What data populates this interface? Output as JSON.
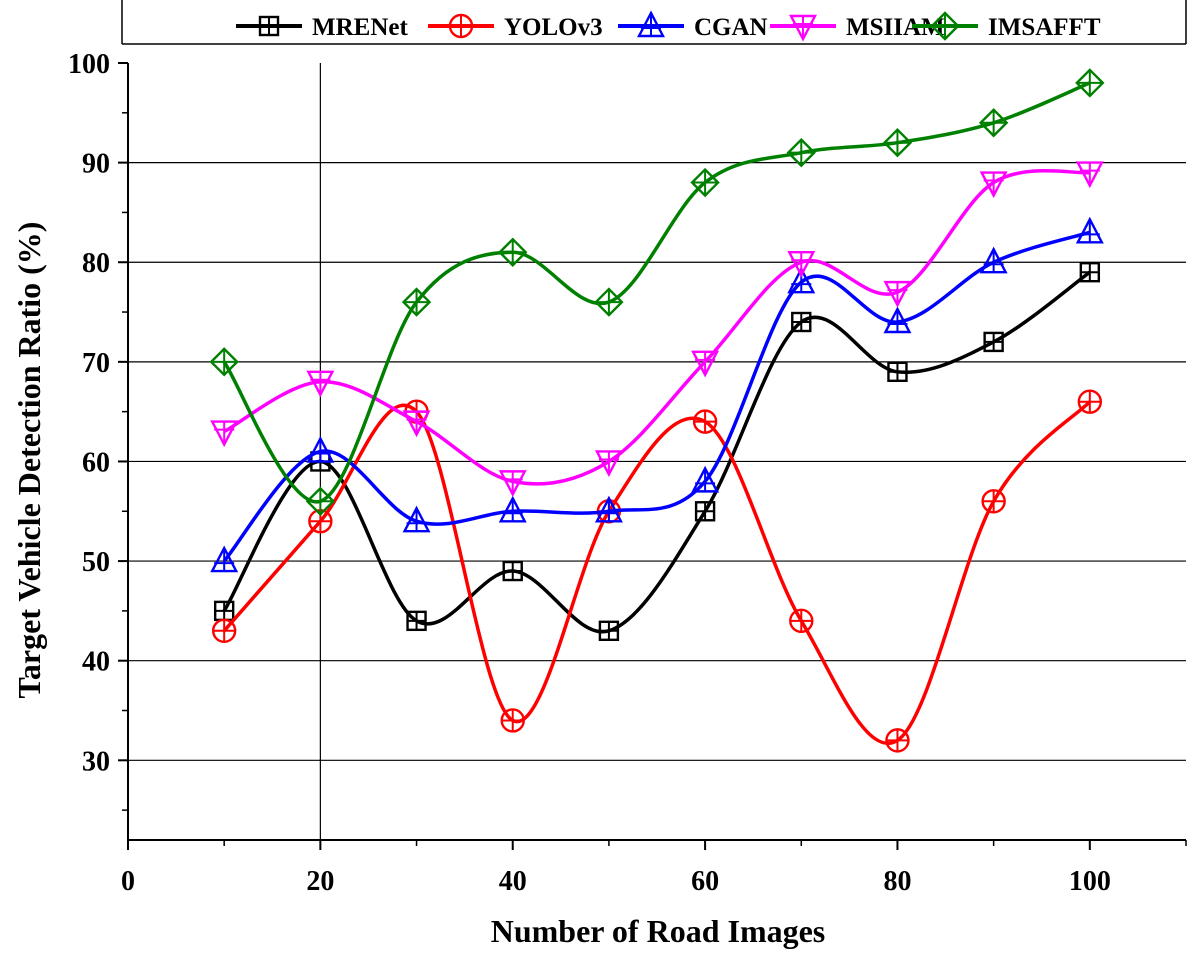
{
  "chart_data": {
    "type": "line",
    "title": "",
    "xlabel": "Number of Road Images",
    "ylabel": "Target Vehicle Detection Ratio (%)",
    "xlim": [
      0,
      110
    ],
    "ylim": [
      22,
      100
    ],
    "x_ticks": [
      0,
      20,
      40,
      60,
      80,
      100
    ],
    "y_ticks": [
      30,
      40,
      50,
      60,
      70,
      80,
      90,
      100
    ],
    "grid": "horizontal gridlines at y ticks; vertical gridline at x=20",
    "legend_position": "top",
    "x": [
      10,
      20,
      30,
      40,
      50,
      60,
      70,
      80,
      90,
      100
    ],
    "series": [
      {
        "name": "MRENet",
        "color": "#000000",
        "marker": "square",
        "values": [
          45,
          60,
          44,
          49,
          43,
          55,
          74,
          69,
          72,
          79
        ]
      },
      {
        "name": "YOLOv3",
        "color": "#ff0000",
        "marker": "circle",
        "values": [
          43,
          54,
          65,
          34,
          55,
          64,
          44,
          32,
          56,
          66
        ]
      },
      {
        "name": "CGAN",
        "color": "#0000ff",
        "marker": "triangle-up",
        "values": [
          50,
          61,
          54,
          55,
          55,
          58,
          78,
          74,
          80,
          83
        ]
      },
      {
        "name": "MSIIAM",
        "color": "#ff00ff",
        "marker": "triangle-down",
        "values": [
          63,
          68,
          64,
          58,
          60,
          70,
          80,
          77,
          88,
          89
        ]
      },
      {
        "name": "IMSAFFT",
        "color": "#008000",
        "marker": "diamond",
        "values": [
          70,
          56,
          76,
          81,
          76,
          88,
          91,
          92,
          94,
          98
        ]
      }
    ]
  }
}
